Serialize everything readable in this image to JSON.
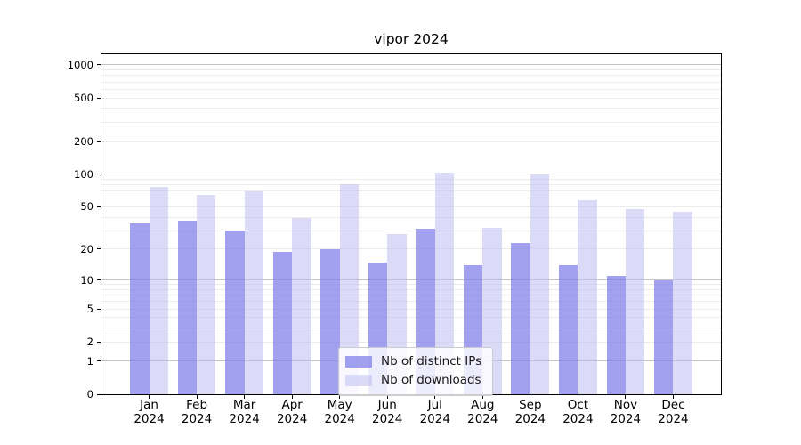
{
  "chart_data": {
    "type": "bar",
    "title": "vipor 2024",
    "categories": [
      "Jan 2024",
      "Feb 2024",
      "Mar 2024",
      "Apr 2024",
      "May 2024",
      "Jun 2024",
      "Jul 2024",
      "Aug 2024",
      "Sep 2024",
      "Oct 2024",
      "Nov 2024",
      "Dec 2024"
    ],
    "series": [
      {
        "name": "Nb of distinct IPs",
        "color": "rgba(130,130,235,0.75)",
        "color_hex_on_white": "#a1a1f0",
        "values": [
          35,
          37,
          30,
          19,
          20,
          15,
          31,
          14,
          23,
          14,
          11,
          10
        ]
      },
      {
        "name": "Nb of downloads",
        "color": "rgba(190,190,243,0.55)",
        "color_hex_on_white": "#dbdbf8",
        "values": [
          76,
          64,
          70,
          39,
          81,
          28,
          103,
          32,
          100,
          58,
          48,
          45
        ]
      }
    ],
    "xlabel": "",
    "ylabel": "",
    "y_axis": {
      "scale": "log1p",
      "tick_values": [
        0,
        1,
        2,
        5,
        10,
        20,
        50,
        100,
        200,
        500,
        1000
      ],
      "tick_labels": [
        "0",
        "1",
        "2",
        "5",
        "10",
        "20",
        "50",
        "100",
        "200",
        "500",
        "1000"
      ],
      "ylim": [
        0,
        1250
      ],
      "minor_tick_values": [
        2,
        3,
        4,
        5,
        6,
        7,
        8,
        9,
        20,
        30,
        40,
        50,
        60,
        70,
        80,
        90,
        200,
        300,
        400,
        500,
        600,
        700,
        800,
        900
      ]
    },
    "grid": true,
    "legend_position": "lower center",
    "style": {
      "major_grid_color": "#c3c3c3",
      "minor_grid_color": "#ececec",
      "axis_color": "#000000",
      "background": "#ffffff"
    }
  }
}
